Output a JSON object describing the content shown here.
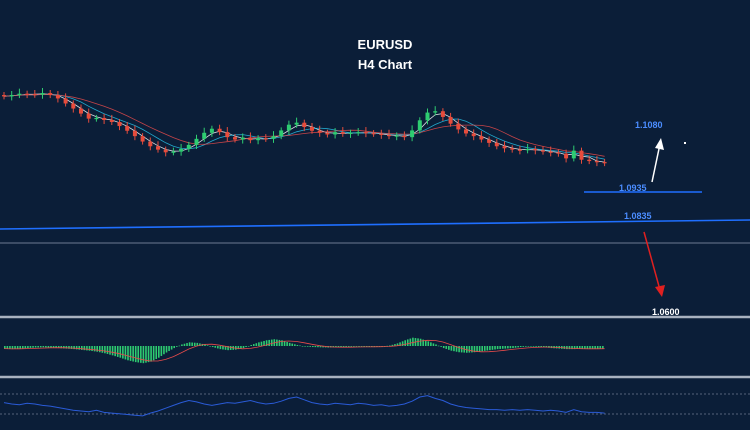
{
  "header": {
    "symbol": "EURUSD",
    "timeframe": "H4 Chart"
  },
  "colors": {
    "background": "#0b1e38",
    "up": "#2ecc71",
    "down": "#e74c3c",
    "level": "#1f6fff",
    "target_up": "#ffffff",
    "target_down": "#e02020",
    "macd_hist": "#2ecc71",
    "rsi": "#2a5bd7"
  },
  "levels": {
    "target_up": "1.1080",
    "resistance": "1.0935",
    "trend": "1.0835",
    "target_down": "1.0600"
  },
  "chart_data": {
    "type": "candlestick",
    "title": "EURUSD",
    "subtitle": "H4 Chart",
    "ylim": [
      1.055,
      1.112
    ],
    "close": [
      1.1006,
      1.101,
      1.1014,
      1.1013,
      1.1011,
      1.1016,
      1.101,
      1.1,
      1.0985,
      1.097,
      1.0955,
      1.094,
      1.0942,
      1.0936,
      1.093,
      1.0918,
      1.0904,
      1.0888,
      1.0872,
      1.0858,
      1.0848,
      1.084,
      1.0842,
      1.085,
      1.0862,
      1.088,
      1.0898,
      1.091,
      1.09,
      1.0885,
      1.0878,
      1.0884,
      1.0876,
      1.0882,
      1.088,
      1.0888,
      1.0905,
      1.0922,
      1.0928,
      1.0915,
      1.0904,
      1.0898,
      1.0893,
      1.09,
      1.0895,
      1.0898,
      1.09,
      1.0897,
      1.0895,
      1.0892,
      1.0888,
      1.089,
      1.0885,
      1.0905,
      1.0935,
      1.0958,
      1.0962,
      1.0945,
      1.0925,
      1.0908,
      1.0896,
      1.0888,
      1.0878,
      1.0868,
      1.0858,
      1.0852,
      1.0848,
      1.0846,
      1.085,
      1.0846,
      1.0842,
      1.084,
      1.0836,
      1.0822,
      1.0845,
      1.0818,
      1.0814,
      1.0811,
      1.0808
    ],
    "macd_hist": [
      -0.1,
      -0.12,
      -0.1,
      -0.08,
      -0.06,
      -0.05,
      -0.06,
      -0.08,
      -0.1,
      -0.12,
      -0.15,
      -0.18,
      -0.22,
      -0.28,
      -0.36,
      -0.45,
      -0.55,
      -0.62,
      -0.66,
      -0.6,
      -0.45,
      -0.25,
      -0.08,
      0.06,
      0.14,
      0.12,
      0.06,
      -0.04,
      -0.12,
      -0.16,
      -0.14,
      -0.08,
      0.04,
      0.14,
      0.22,
      0.26,
      0.22,
      0.12,
      0.04,
      -0.02,
      -0.04,
      -0.05,
      -0.06,
      -0.05,
      -0.04,
      -0.03,
      -0.02,
      -0.03,
      -0.04,
      -0.02,
      0.02,
      0.1,
      0.22,
      0.32,
      0.28,
      0.18,
      0.06,
      -0.08,
      -0.18,
      -0.24,
      -0.26,
      -0.24,
      -0.2,
      -0.16,
      -0.12,
      -0.1,
      -0.08,
      -0.04,
      -0.02,
      -0.03,
      -0.05,
      -0.08,
      -0.1,
      -0.12,
      -0.12,
      -0.1,
      -0.1,
      -0.1,
      -0.1
    ],
    "rsi": [
      52,
      50,
      49,
      51,
      50,
      48,
      47,
      45,
      43,
      41,
      40,
      39,
      41,
      38,
      37,
      36,
      35,
      34,
      33,
      37,
      40,
      44,
      48,
      52,
      55,
      53,
      50,
      48,
      50,
      52,
      51,
      53,
      55,
      52,
      50,
      51,
      54,
      58,
      60,
      56,
      52,
      50,
      49,
      51,
      50,
      49,
      51,
      50,
      48,
      49,
      47,
      48,
      50,
      54,
      60,
      62,
      58,
      55,
      50,
      47,
      45,
      44,
      43,
      42,
      42,
      41,
      42,
      41,
      42,
      41,
      40,
      41,
      40,
      38,
      42,
      39,
      38,
      38,
      37
    ]
  }
}
